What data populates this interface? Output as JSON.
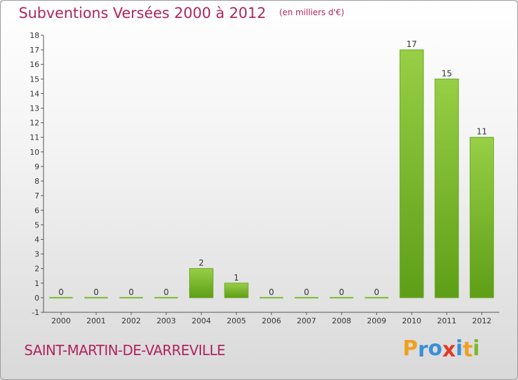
{
  "chart_data": {
    "type": "bar",
    "title": "Subventions Versées 2000 à 2012",
    "unit": "(en milliers d'€)",
    "categories": [
      "2000",
      "2001",
      "2002",
      "2003",
      "2004",
      "2005",
      "2006",
      "2007",
      "2008",
      "2009",
      "2010",
      "2011",
      "2012"
    ],
    "values": [
      0,
      0,
      0,
      0,
      2,
      1,
      0,
      0,
      0,
      0,
      17,
      15,
      11
    ],
    "data_labels": [
      "0",
      "0",
      "0",
      "0",
      "2",
      "1",
      "0",
      "0",
      "0",
      "0",
      "17",
      "15",
      "11"
    ],
    "ylim": [
      -1,
      18
    ],
    "yticks": [
      -1,
      0,
      1,
      2,
      3,
      4,
      5,
      6,
      7,
      8,
      9,
      10,
      11,
      12,
      13,
      14,
      15,
      16,
      17,
      18
    ],
    "ytick_labels": [
      "-1",
      "0",
      "1",
      "2",
      "3",
      "4",
      "5",
      "6",
      "7",
      "8",
      "9",
      "10",
      "11",
      "12",
      "13",
      "14",
      "15",
      "16",
      "17",
      "18"
    ],
    "grid": false,
    "bar_color": "#7cb82f"
  },
  "commune": "SAINT-MARTIN-DE-VARREVILLE",
  "brand": {
    "letters": [
      "P",
      "r",
      "o",
      "x",
      "i",
      "t",
      "i"
    ],
    "colors": [
      "#f0a020",
      "#3a8fd8",
      "#3a8fd8",
      "#e03a2a",
      "#3a8fd8",
      "#f0a020",
      "#7cb82f"
    ]
  }
}
